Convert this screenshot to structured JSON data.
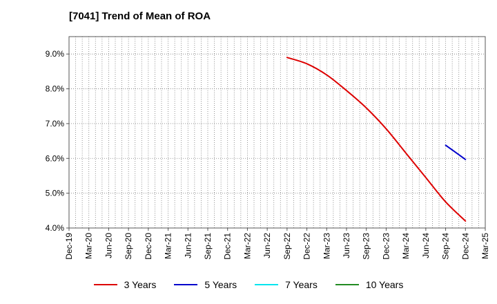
{
  "chart_data": {
    "type": "line",
    "title": "[7041]  Trend of Mean of ROA",
    "xlabel": "",
    "ylabel": "",
    "categories": [
      "Dec-19",
      "Mar-20",
      "Jun-20",
      "Sep-20",
      "Dec-20",
      "Mar-21",
      "Jun-21",
      "Sep-21",
      "Dec-21",
      "Mar-22",
      "Jun-22",
      "Sep-22",
      "Dec-22",
      "Mar-23",
      "Jun-23",
      "Sep-23",
      "Dec-23",
      "Mar-24",
      "Jun-24",
      "Sep-24",
      "Dec-24",
      "Mar-25"
    ],
    "ylim": [
      4.0,
      9.5
    ],
    "yticks": [
      4.0,
      5.0,
      6.0,
      7.0,
      8.0,
      9.0
    ],
    "ytick_labels": [
      "4.0%",
      "5.0%",
      "6.0%",
      "7.0%",
      "8.0%",
      "9.0%"
    ],
    "grid": true,
    "legend_position": "bottom",
    "series": [
      {
        "name": "3 Years",
        "color": "#dd0000",
        "x": [
          "Sep-22",
          "Dec-22",
          "Mar-23",
          "Jun-23",
          "Sep-23",
          "Dec-23",
          "Mar-24",
          "Jun-24",
          "Sep-24",
          "Dec-24"
        ],
        "values": [
          8.9,
          8.72,
          8.4,
          7.95,
          7.45,
          6.85,
          6.15,
          5.45,
          4.75,
          4.2
        ]
      },
      {
        "name": "5 Years",
        "color": "#0000cc",
        "x": [
          "Sep-24",
          "Dec-24"
        ],
        "values": [
          6.38,
          5.97
        ]
      },
      {
        "name": "7 Years",
        "color": "#00e5ee",
        "x": [],
        "values": []
      },
      {
        "name": "10 Years",
        "color": "#228b22",
        "x": [],
        "values": []
      }
    ]
  }
}
